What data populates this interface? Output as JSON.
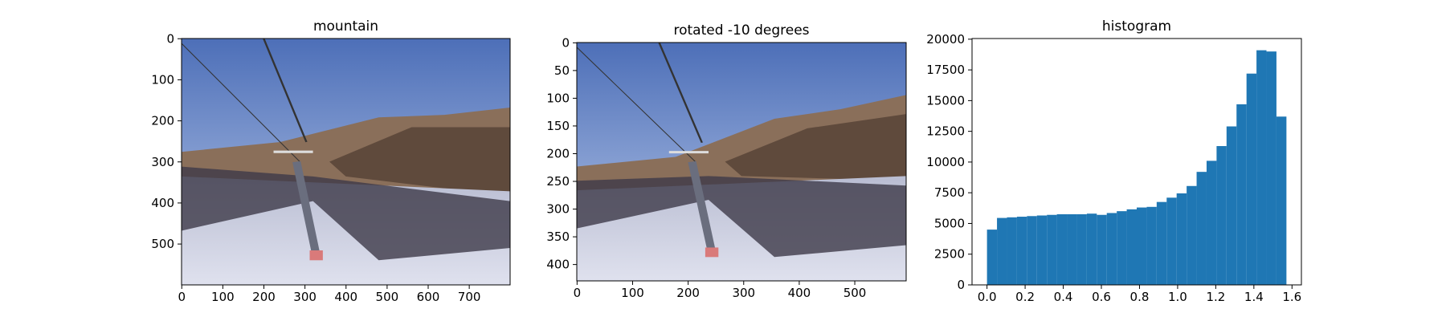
{
  "chart_data": [
    {
      "type": "image",
      "title": "mountain",
      "xlim": [
        -0.5,
        799.5
      ],
      "ylim": [
        599.5,
        -0.5
      ],
      "xticks": [
        0,
        100,
        200,
        300,
        400,
        500,
        600,
        700
      ],
      "yticks": [
        0,
        100,
        200,
        300,
        400,
        500
      ]
    },
    {
      "type": "image",
      "title": "rotated -10 degrees",
      "xlim": [
        -0.5,
        592.5
      ],
      "ylim": [
        429.5,
        -0.5
      ],
      "xticks": [
        0,
        100,
        200,
        300,
        400,
        500
      ],
      "yticks": [
        0,
        50,
        100,
        150,
        200,
        250,
        300,
        350,
        400
      ]
    },
    {
      "type": "histogram",
      "title": "histogram",
      "color": "#1f77b4",
      "bins": [
        0,
        0.0524,
        0.1047,
        0.1571,
        0.2094,
        0.2618,
        0.3142,
        0.3665,
        0.4189,
        0.4712,
        0.5236,
        0.576,
        0.6283,
        0.6807,
        0.733,
        0.7854,
        0.8378,
        0.8901,
        0.9425,
        0.9948,
        1.0472,
        1.0996,
        1.1519,
        1.2043,
        1.2566,
        1.309,
        1.3614,
        1.4137,
        1.4661,
        1.5184,
        1.5708
      ],
      "values": [
        4500,
        5450,
        5500,
        5550,
        5600,
        5650,
        5700,
        5750,
        5750,
        5750,
        5800,
        5700,
        5850,
        6000,
        6150,
        6300,
        6350,
        6750,
        7100,
        7450,
        8050,
        9200,
        10100,
        11300,
        12900,
        14700,
        17200,
        19100,
        19000,
        13700
      ],
      "xlim": [
        -0.0785,
        1.6493
      ],
      "ylim": [
        0,
        20055
      ],
      "xticks": [
        {
          "value": 0,
          "label": "0.0"
        },
        0.2,
        0.4,
        0.6,
        0.8,
        {
          "value": 1,
          "label": "1.0"
        },
        1.2,
        1.4,
        1.6
      ],
      "yticks": [
        0,
        2500,
        5000,
        7500,
        10000,
        12500,
        15000,
        17500,
        20000
      ]
    }
  ]
}
